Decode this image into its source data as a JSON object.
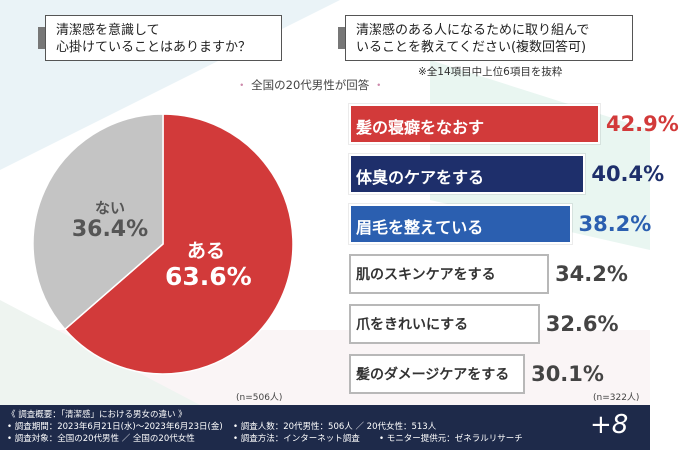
{
  "questions": {
    "q1": "清潔感を意識して\n心掛けていることはありますか？",
    "q2": "清潔感のある人になるために取り組んで\nいることを教えてください(複数回答可)"
  },
  "note": "※全14項目中上位6項目を抜粋",
  "subhead": "全国の20代男性が回答",
  "pie": {
    "n": "(n=506人)",
    "slices": [
      {
        "label": "ある",
        "value_text": "63.6%",
        "value": 63.6,
        "color": "#d23a3a"
      },
      {
        "label": "ない",
        "value_text": "36.4%",
        "value": 36.4,
        "color": "#c4c4c4"
      }
    ]
  },
  "bars": {
    "n": "(n=322人)",
    "items": [
      {
        "label": "髪の寝癖をなおす",
        "value": 42.9,
        "value_text": "42.9%",
        "color": "#d23a3a"
      },
      {
        "label": "体臭のケアをする",
        "value": 40.4,
        "value_text": "40.4%",
        "color": "#1e2f6b"
      },
      {
        "label": "眉毛を整えている",
        "value": 38.2,
        "value_text": "38.2%",
        "color": "#2b5fb0"
      },
      {
        "label": "肌のスキンケアをする",
        "value": 34.2,
        "value_text": "34.2%",
        "color": "#ffffff"
      },
      {
        "label": "爪をきれいにする",
        "value": 32.6,
        "value_text": "32.6%",
        "color": "#ffffff"
      },
      {
        "label": "髪のダメージケアをする",
        "value": 30.1,
        "value_text": "30.1%",
        "color": "#ffffff"
      }
    ]
  },
  "chart_data": [
    {
      "type": "pie",
      "title": "清潔感を意識して心掛けていることはありますか？",
      "categories": [
        "ある",
        "ない"
      ],
      "values": [
        63.6,
        36.4
      ]
    },
    {
      "type": "bar",
      "title": "清潔感のある人になるために取り組んでいることを教えてください(複数回答可)",
      "categories": [
        "髪の寝癖をなおす",
        "体臭のケアをする",
        "眉毛を整えている",
        "肌のスキンケアをする",
        "爪をきれいにする",
        "髪のダメージケアをする"
      ],
      "values": [
        42.9,
        40.4,
        38.2,
        34.2,
        32.6,
        30.1
      ]
    }
  ],
  "footer": {
    "l1": "《 調査概要：「清潔感」における男女の違い 》",
    "l2a": "• 調査期間：2023年6月21日(水)～2023年6月23日(金)",
    "l2b": "• 調査人数：20代男性：506人 ／ 20代女性：513人",
    "l3a": "• 調査対象：全国の20代男性 ／ 全国の20代女性",
    "l3b": "• 調査方法：インターネット調査",
    "l3c": "• モニター提供元：ゼネラルリサーチ",
    "logo": "+8"
  }
}
